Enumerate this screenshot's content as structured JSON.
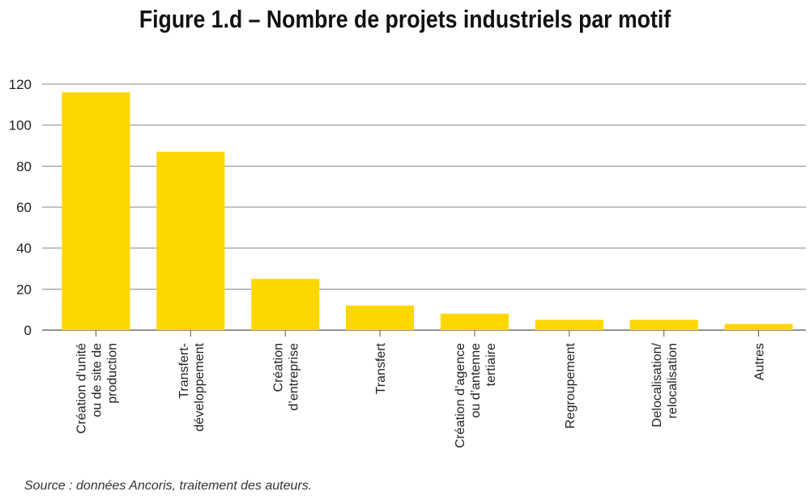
{
  "chart_data": {
    "type": "bar",
    "title": "Figure 1.d – Nombre de projets industriels par motif",
    "categories": [
      [
        "Création d’unité",
        "ou de site de",
        "production"
      ],
      [
        "Transfert-",
        "développement"
      ],
      [
        "Création",
        "d’entreprise"
      ],
      [
        "Transfert"
      ],
      [
        "Création d’agence",
        "ou d’antenne",
        "tertiaire"
      ],
      [
        "Regroupement"
      ],
      [
        "Delocalisation/",
        "relocalisation"
      ],
      [
        "Autres"
      ]
    ],
    "values": [
      116,
      87,
      25,
      12,
      8,
      5,
      5,
      3
    ],
    "ylim": [
      0,
      120
    ],
    "yticks": [
      0,
      20,
      40,
      60,
      80,
      100,
      120
    ],
    "grid": true,
    "bar_color": "#FFD700",
    "source": "Source : données Ancoris, traitement des auteurs."
  }
}
